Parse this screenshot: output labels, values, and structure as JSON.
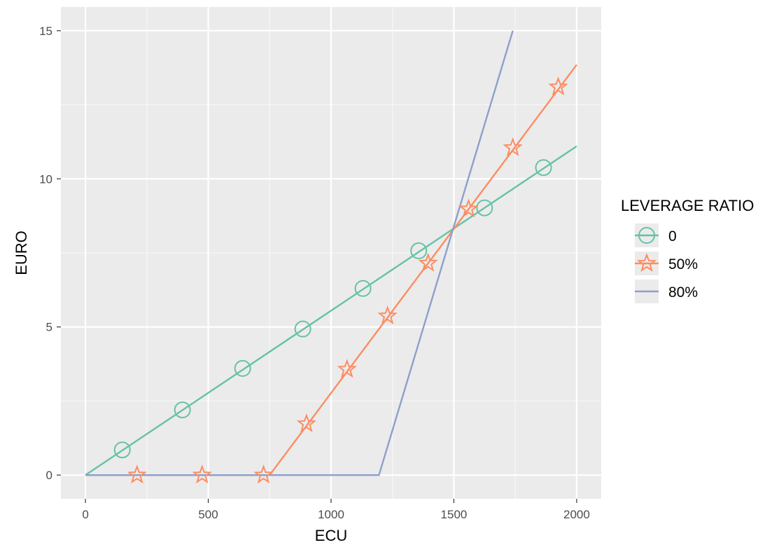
{
  "chart_data": {
    "type": "line",
    "title": "",
    "xlabel": "ECU",
    "ylabel": "EURO",
    "xlim": [
      -100,
      2100
    ],
    "ylim": [
      -0.8,
      15.8
    ],
    "x_ticks": [
      0,
      500,
      1000,
      1500,
      2000
    ],
    "x_tick_labels": [
      "0",
      "500",
      "1000",
      "1500",
      "2000"
    ],
    "y_ticks": [
      0,
      5,
      10,
      15
    ],
    "y_tick_labels": [
      "0",
      "5",
      "10",
      "15"
    ],
    "grid": true,
    "background": "#ebebeb",
    "legend": {
      "title": "LEVERAGE RATIO",
      "position": "right"
    },
    "series": [
      {
        "name": "0",
        "color": "#66c2a5",
        "marker": "circle",
        "line": [
          [
            0,
            0
          ],
          [
            2000,
            11.1
          ]
        ],
        "markers": [
          [
            150,
            0.85
          ],
          [
            395,
            2.2
          ],
          [
            640,
            3.6
          ],
          [
            885,
            4.93
          ],
          [
            1130,
            6.3
          ],
          [
            1357,
            7.57
          ],
          [
            1625,
            9.02
          ],
          [
            1865,
            10.38
          ]
        ]
      },
      {
        "name": "50%",
        "color": "#fc8d62",
        "marker": "star",
        "line": [
          [
            0,
            0
          ],
          [
            750,
            0
          ],
          [
            2000,
            13.85
          ]
        ],
        "markers": [
          [
            210,
            0
          ],
          [
            475,
            0
          ],
          [
            725,
            0
          ],
          [
            900,
            1.73
          ],
          [
            1065,
            3.57
          ],
          [
            1230,
            5.37
          ],
          [
            1395,
            7.15
          ],
          [
            1560,
            8.98
          ],
          [
            1740,
            11.05
          ],
          [
            1925,
            13.1
          ]
        ]
      },
      {
        "name": "80%",
        "color": "#8da0cb",
        "marker": "none",
        "line": [
          [
            0,
            0
          ],
          [
            1195,
            0
          ],
          [
            1740,
            15
          ]
        ],
        "markers": []
      }
    ]
  }
}
